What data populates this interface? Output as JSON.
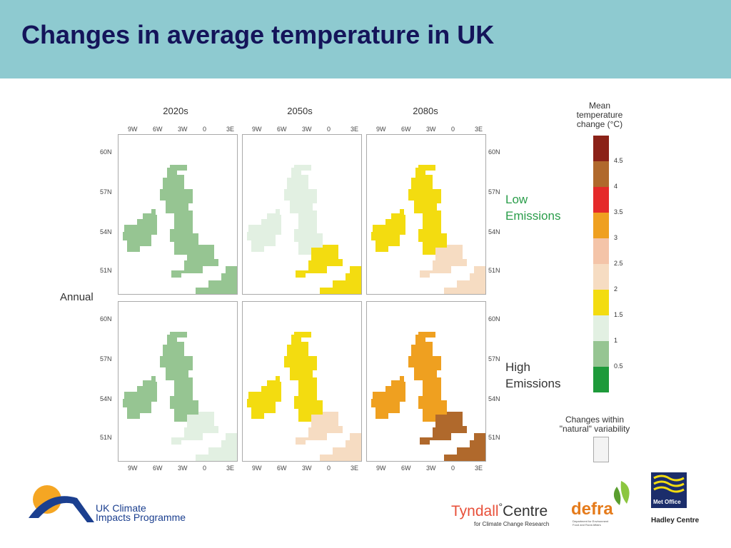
{
  "header": {
    "title": "Changes in average temperature in UK",
    "bg": "#8ecad0",
    "title_color": "#14145a"
  },
  "periods": [
    "2020s",
    "2050s",
    "2080s"
  ],
  "scenarios": {
    "low": [
      "Low",
      "Emissions"
    ],
    "high": [
      "High",
      "Emissions"
    ],
    "color": "#2a9d4a"
  },
  "row_label": "Annual",
  "axes": {
    "x_ticks": [
      "9W",
      "6W",
      "3W",
      "0",
      "3E"
    ],
    "y_ticks": [
      "60N",
      "57N",
      "54N",
      "51N"
    ]
  },
  "legend": {
    "title": [
      "Mean",
      "temperature",
      "change  (°C)"
    ],
    "colors": [
      "#8b2218",
      "#b0692c",
      "#e52a2a",
      "#efa020",
      "#f4c4a8",
      "#f6dcc2",
      "#f3dc10",
      "#e2f0e2",
      "#96c592",
      "#1e9a3a"
    ],
    "tick_labels": [
      "4.5",
      "4",
      "3.5",
      "3",
      "2.5",
      "2",
      "1.5",
      "1",
      "0.5"
    ],
    "natural_variability": [
      "Changes within",
      "\"natural\" variability"
    ],
    "natural_color": "#f3f3f3"
  },
  "maps": {
    "low": [
      {
        "period": "2020s",
        "scotland": "0.5-1",
        "ireland": "0.5-1",
        "england_south": "0.5-1"
      },
      {
        "period": "2050s",
        "scotland": "1-1.5",
        "ireland": "1-1.5",
        "england_south": "1.5-2"
      },
      {
        "period": "2080s",
        "scotland": "1.5-2",
        "ireland": "1.5-2",
        "england_south": "2-2.5"
      }
    ],
    "high": [
      {
        "period": "2020s",
        "scotland": "0.5-1",
        "ireland": "0.5-1",
        "england_south": "1-1.5"
      },
      {
        "period": "2050s",
        "scotland": "1.5-2",
        "ireland": "1.5-2",
        "england_south": "2-2.5"
      },
      {
        "period": "2080s",
        "scotland": "3-3.5",
        "ireland": "3-3.5",
        "england_south": "4-4.5"
      }
    ]
  },
  "logos": {
    "ukcip": [
      "UK Climate",
      "Impacts Programme"
    ],
    "tyndall": "Tyndall",
    "tyndall_sup": "°",
    "tyndall_centre": "Centre",
    "tyndall_sub": "for Climate Change Research",
    "defra": "defra",
    "defra_sub": [
      "Department for Environment",
      "Food and Rural Affairs"
    ],
    "metoffice": "Met Office",
    "hadley": "Hadley Centre"
  }
}
